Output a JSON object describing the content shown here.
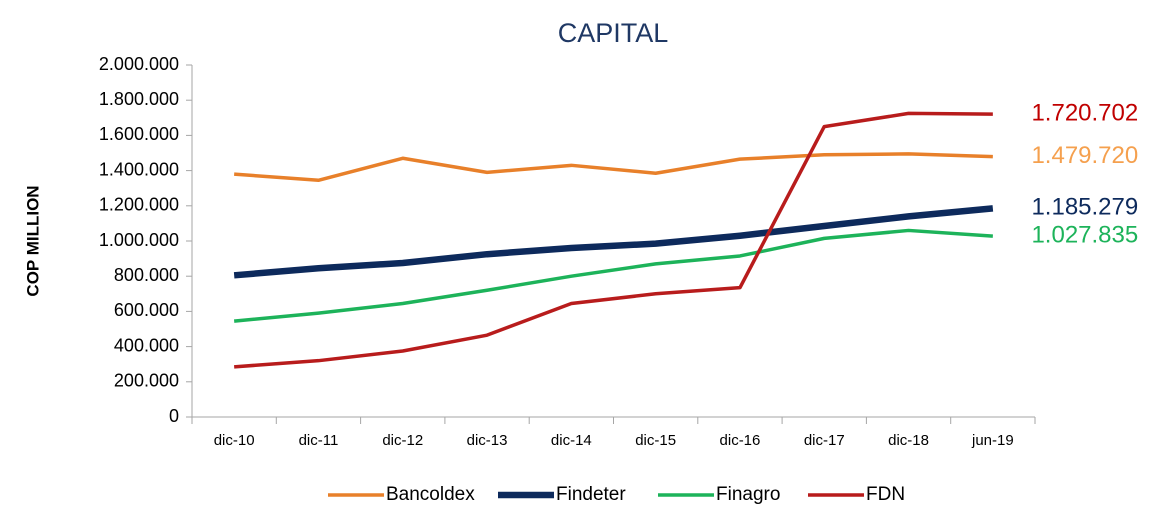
{
  "chart_data": {
    "type": "line",
    "title": "CAPITAL",
    "y_label": "COP MILLION",
    "categories": [
      "dic-10",
      "dic-11",
      "dic-12",
      "dic-13",
      "dic-14",
      "dic-15",
      "dic-16",
      "dic-17",
      "dic-18",
      "jun-19"
    ],
    "series": [
      {
        "name": "Bancoldex",
        "color": "#e8802a",
        "label_color": "#f5a04e",
        "line_width": 3.5,
        "values": [
          1380000,
          1345000,
          1470000,
          1390000,
          1430000,
          1385000,
          1465000,
          1490000,
          1495000,
          1479720
        ],
        "value_labels": [
          null,
          null,
          null,
          null,
          null,
          null,
          null,
          null,
          null,
          "1.479.720"
        ]
      },
      {
        "name": "Findeter",
        "color": "#0d2a5c",
        "label_color": "#0d2a5c",
        "line_width": 6.5,
        "values": [
          805000,
          845000,
          875000,
          925000,
          960000,
          985000,
          1030000,
          1085000,
          1140000,
          1185279
        ],
        "value_labels": [
          null,
          null,
          null,
          null,
          null,
          null,
          null,
          null,
          null,
          "1.185.279"
        ]
      },
      {
        "name": "Finagro",
        "color": "#1db35a",
        "label_color": "#1db35a",
        "line_width": 3.5,
        "values": [
          545000,
          590000,
          645000,
          720000,
          800000,
          870000,
          915000,
          1015000,
          1060000,
          1027835
        ],
        "value_labels": [
          null,
          null,
          null,
          null,
          null,
          null,
          null,
          null,
          null,
          "1.027.835"
        ]
      },
      {
        "name": "FDN",
        "color": "#b81c1c",
        "label_color": "#c00000",
        "line_width": 3.5,
        "values": [
          285000,
          320000,
          375000,
          465000,
          645000,
          700000,
          735000,
          1650000,
          1725000,
          1720702
        ],
        "value_labels": [
          null,
          null,
          null,
          null,
          null,
          null,
          null,
          null,
          null,
          "1.720.702"
        ]
      }
    ],
    "ylim": [
      0,
      2000000
    ],
    "yticks": [
      0,
      {
        "value": 200000,
        "label": "200.000"
      },
      {
        "value": 400000,
        "label": "400.000"
      },
      {
        "value": 600000,
        "label": "600.000"
      },
      {
        "value": 800000,
        "label": "800.000"
      },
      {
        "value": 1000000,
        "label": "1.000.000"
      },
      {
        "value": 1200000,
        "label": "1.200.000"
      },
      {
        "value": 1400000,
        "label": "1.400.000"
      },
      {
        "value": 1600000,
        "label": "1.600.000"
      },
      {
        "value": 1800000,
        "label": "1.800.000"
      },
      {
        "value": 2000000,
        "label": "2.000.000"
      }
    ],
    "grid": false,
    "legend": "bottom"
  }
}
